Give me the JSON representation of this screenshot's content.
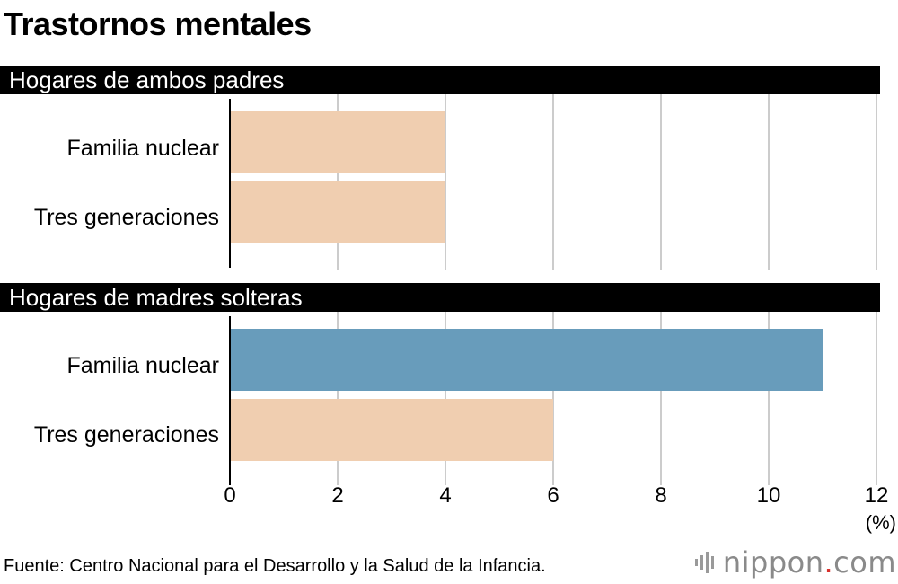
{
  "chart_data": {
    "type": "bar",
    "orientation": "horizontal",
    "title": "Trastornos mentales",
    "unit_label": "(%)",
    "xlim": [
      0,
      12
    ],
    "x_ticks": [
      "0",
      "2",
      "4",
      "6",
      "8",
      "10",
      "12"
    ],
    "x_tick_values": [
      0,
      2,
      4,
      6,
      8,
      10,
      12
    ],
    "grid": true,
    "groups": [
      {
        "name": "Hogares de ambos padres",
        "categories": [
          "Familia nuclear",
          "Tres generaciones"
        ],
        "values": [
          4,
          4
        ],
        "colors": [
          "#f0ceb0",
          "#f0ceb0"
        ]
      },
      {
        "name": "Hogares de madres solteras",
        "categories": [
          "Familia nuclear",
          "Tres generaciones"
        ],
        "values": [
          11,
          6
        ],
        "colors": [
          "#689cbb",
          "#f0ceb0"
        ]
      }
    ]
  },
  "footer": {
    "source": "Fuente: Centro Nacional para el Desarrollo y la Salud de la Infancia.",
    "brand_main": "nippon",
    "brand_dot": ".",
    "brand_tld": "com"
  },
  "colors": {
    "highlight": "#689cbb",
    "base": "#f0ceb0",
    "grid": "#cccccc"
  }
}
